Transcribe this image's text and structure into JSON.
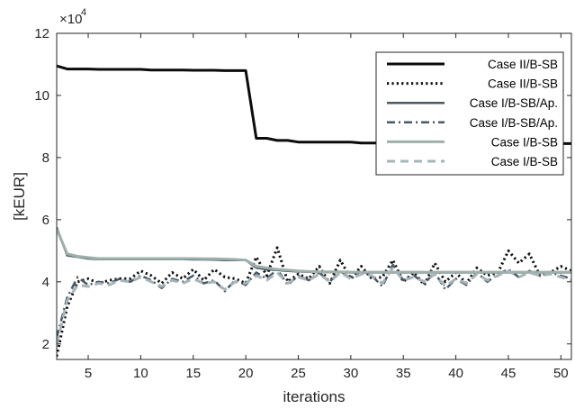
{
  "chart_data": {
    "type": "line",
    "xlabel": "iterations",
    "ylabel": "[kEUR]",
    "exponent_label": "×10",
    "exponent_power": "4",
    "xlim": [
      2,
      51
    ],
    "ylim": [
      1.5,
      12
    ],
    "xticks": [
      5,
      10,
      15,
      20,
      25,
      30,
      35,
      40,
      45,
      50
    ],
    "yticks": [
      2,
      4,
      6,
      8,
      10,
      12
    ],
    "legend_position": "top-right",
    "grid": false,
    "series": [
      {
        "name": "Case II/B-SB",
        "color": "#0b0b0b",
        "dash": "solid",
        "width": 3,
        "x": [
          2,
          3,
          4,
          5,
          6,
          7,
          8,
          9,
          10,
          11,
          12,
          13,
          14,
          15,
          16,
          17,
          18,
          19,
          20,
          21,
          22,
          23,
          24,
          25,
          26,
          27,
          28,
          29,
          30,
          31,
          32,
          33,
          34,
          35,
          36,
          37,
          38,
          39,
          40,
          41,
          42,
          43,
          44,
          45,
          46,
          47,
          48,
          49,
          50,
          51
        ],
        "y": [
          10.95,
          10.85,
          10.85,
          10.85,
          10.84,
          10.84,
          10.84,
          10.84,
          10.84,
          10.82,
          10.82,
          10.82,
          10.82,
          10.81,
          10.81,
          10.81,
          10.8,
          10.8,
          10.8,
          8.62,
          8.62,
          8.55,
          8.55,
          8.5,
          8.5,
          8.5,
          8.5,
          8.5,
          8.5,
          8.47,
          8.47,
          8.47,
          8.47,
          8.47,
          8.46,
          8.46,
          8.46,
          8.46,
          8.46,
          8.46,
          8.46,
          8.46,
          8.46,
          8.45,
          8.45,
          8.45,
          8.45,
          8.45,
          8.45,
          8.45
        ]
      },
      {
        "name": "Case II/B-SB",
        "color": "#111111",
        "dash": "dotted",
        "width": 3,
        "x": [
          2,
          3,
          4,
          5,
          6,
          7,
          8,
          9,
          10,
          11,
          12,
          13,
          14,
          15,
          16,
          17,
          18,
          19,
          20,
          21,
          22,
          23,
          24,
          25,
          26,
          27,
          28,
          29,
          30,
          31,
          32,
          33,
          34,
          35,
          36,
          37,
          38,
          39,
          40,
          41,
          42,
          43,
          44,
          45,
          46,
          47,
          48,
          49,
          50,
          51
        ],
        "y": [
          1.6,
          3.2,
          4.0,
          4.1,
          3.95,
          4.05,
          4.1,
          4.1,
          4.35,
          4.2,
          3.95,
          4.3,
          4.1,
          4.4,
          4.05,
          4.4,
          4.15,
          4.1,
          3.95,
          4.8,
          4.2,
          5.1,
          4.0,
          4.25,
          4.1,
          4.5,
          3.95,
          4.7,
          4.1,
          4.5,
          4.1,
          4.15,
          4.7,
          4.0,
          4.3,
          3.9,
          4.6,
          4.0,
          4.3,
          3.95,
          4.45,
          4.2,
          4.3,
          5.0,
          4.6,
          4.9,
          4.2,
          4.3,
          4.5,
          4.35
        ]
      },
      {
        "name": "Case I/B-SB/Ap.",
        "color": "#4a5966",
        "dash": "solid",
        "width": 2.5,
        "x": [
          2,
          3,
          4,
          5,
          6,
          7,
          8,
          9,
          10,
          11,
          12,
          13,
          14,
          15,
          16,
          17,
          18,
          19,
          20,
          21,
          22,
          23,
          24,
          25,
          26,
          27,
          28,
          29,
          30,
          31,
          32,
          33,
          34,
          35,
          36,
          37,
          38,
          39,
          40,
          41,
          42,
          43,
          44,
          45,
          46,
          47,
          48,
          49,
          50,
          51
        ],
        "y": [
          5.75,
          4.85,
          4.8,
          4.75,
          4.73,
          4.73,
          4.73,
          4.73,
          4.73,
          4.73,
          4.73,
          4.73,
          4.73,
          4.72,
          4.72,
          4.71,
          4.7,
          4.7,
          4.7,
          4.45,
          4.4,
          4.38,
          4.35,
          4.33,
          4.32,
          4.31,
          4.31,
          4.31,
          4.3,
          4.3,
          4.3,
          4.3,
          4.3,
          4.3,
          4.3,
          4.3,
          4.3,
          4.3,
          4.3,
          4.3,
          4.3,
          4.3,
          4.3,
          4.3,
          4.3,
          4.3,
          4.3,
          4.3,
          4.3,
          4.3
        ]
      },
      {
        "name": "Case I/B-SB/Ap.",
        "color": "#4a5966",
        "dash": "dashdot",
        "width": 2.5,
        "x": [
          2,
          3,
          4,
          5,
          6,
          7,
          8,
          9,
          10,
          11,
          12,
          13,
          14,
          15,
          16,
          17,
          18,
          19,
          20,
          21,
          22,
          23,
          24,
          25,
          26,
          27,
          28,
          29,
          30,
          31,
          32,
          33,
          34,
          35,
          36,
          37,
          38,
          39,
          40,
          41,
          42,
          43,
          44,
          45,
          46,
          47,
          48,
          49,
          50,
          51
        ],
        "y": [
          2.2,
          3.5,
          4.15,
          3.9,
          4.0,
          3.95,
          4.1,
          4.0,
          4.2,
          4.05,
          3.8,
          4.1,
          4.0,
          4.2,
          3.95,
          4.05,
          3.7,
          4.05,
          3.9,
          4.3,
          4.1,
          4.4,
          3.9,
          4.2,
          4.05,
          4.3,
          4.0,
          4.35,
          4.1,
          4.3,
          4.2,
          3.85,
          4.55,
          4.05,
          4.2,
          3.95,
          4.3,
          3.75,
          4.1,
          3.9,
          4.3,
          4.0,
          4.25,
          4.4,
          4.15,
          4.35,
          4.2,
          4.3,
          4.2,
          4.1
        ]
      },
      {
        "name": "Case I/B-SB",
        "color": "#9fb0ab",
        "dash": "solid",
        "width": 3,
        "x": [
          2,
          3,
          4,
          5,
          6,
          7,
          8,
          9,
          10,
          11,
          12,
          13,
          14,
          15,
          16,
          17,
          18,
          19,
          20,
          21,
          22,
          23,
          24,
          25,
          26,
          27,
          28,
          29,
          30,
          31,
          32,
          33,
          34,
          35,
          36,
          37,
          38,
          39,
          40,
          41,
          42,
          43,
          44,
          45,
          46,
          47,
          48,
          49,
          50,
          51
        ],
        "y": [
          5.7,
          4.9,
          4.82,
          4.78,
          4.75,
          4.75,
          4.75,
          4.75,
          4.75,
          4.75,
          4.75,
          4.75,
          4.75,
          4.75,
          4.74,
          4.74,
          4.73,
          4.72,
          4.7,
          4.5,
          4.45,
          4.4,
          4.38,
          4.35,
          4.33,
          4.32,
          4.32,
          4.32,
          4.31,
          4.31,
          4.31,
          4.31,
          4.31,
          4.31,
          4.31,
          4.31,
          4.31,
          4.31,
          4.31,
          4.31,
          4.31,
          4.31,
          4.31,
          4.31,
          4.31,
          4.31,
          4.31,
          4.31,
          4.31,
          4.31
        ]
      },
      {
        "name": "Case I/B-SB",
        "color": "#a6b4b8",
        "dash": "dashed",
        "width": 3,
        "x": [
          2,
          3,
          4,
          5,
          6,
          7,
          8,
          9,
          10,
          11,
          12,
          13,
          14,
          15,
          16,
          17,
          18,
          19,
          20,
          21,
          22,
          23,
          24,
          25,
          26,
          27,
          28,
          29,
          30,
          31,
          32,
          33,
          34,
          35,
          36,
          37,
          38,
          39,
          40,
          41,
          42,
          43,
          44,
          45,
          46,
          47,
          48,
          49,
          50,
          51
        ],
        "y": [
          2.0,
          3.4,
          3.9,
          3.85,
          3.95,
          3.9,
          4.05,
          4.0,
          4.15,
          4.0,
          3.85,
          4.05,
          3.95,
          4.1,
          3.95,
          4.0,
          3.75,
          4.0,
          3.95,
          4.2,
          4.05,
          4.3,
          3.95,
          4.15,
          4.05,
          4.25,
          4.0,
          4.3,
          4.1,
          4.25,
          4.2,
          3.95,
          4.45,
          4.05,
          4.15,
          4.0,
          4.25,
          3.85,
          4.1,
          3.95,
          4.25,
          4.05,
          4.2,
          4.35,
          4.15,
          4.3,
          4.2,
          4.25,
          4.15,
          4.05
        ]
      }
    ]
  }
}
